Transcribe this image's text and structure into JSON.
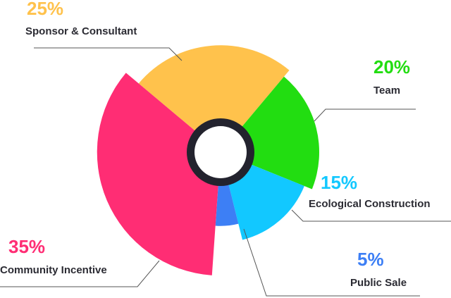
{
  "chart_data": {
    "type": "rose-pie",
    "categories": [
      "Sponsor & Consultant",
      "Team",
      "Ecological Construction",
      "Public Sale",
      "Community Incentive"
    ],
    "values": [
      25,
      20,
      15,
      5,
      35
    ],
    "value_labels": [
      "25%",
      "20%",
      "15%",
      "5%",
      "35%"
    ],
    "colors": [
      "#ffc24c",
      "#22dd11",
      "#12c8ff",
      "#3d7ff5",
      "#ff2d74"
    ]
  }
}
